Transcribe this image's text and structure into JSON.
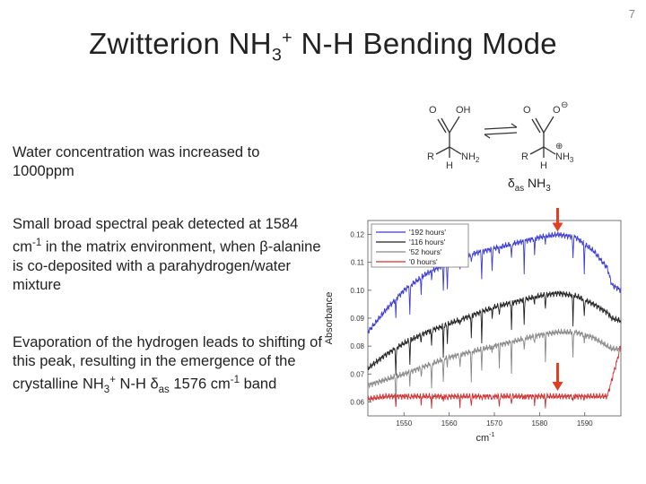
{
  "slide_number": "7",
  "title": {
    "prefix": "Zwitterion NH",
    "sub": "3",
    "sup": "+",
    "suffix": " N-H Bending Mode"
  },
  "paragraphs": {
    "p1": "Water concentration was increased to 1000ppm",
    "p2": {
      "a": "Small broad spectral peak detected at 1584 cm",
      "sup": "-1",
      "b": " in the matrix environment, when β-alanine is co-deposited with a parahydrogen/water mixture"
    },
    "p3": {
      "a": "Evaporation of the hydrogen leads to shifting of this peak, resulting in the emergence of the crystalline NH",
      "sub": "3",
      "sup": "+",
      "b": " N-H ",
      "delta": "δ",
      "delta_sub": "as",
      "c": " 1576 cm",
      "sup2": "-1",
      "d": " band"
    }
  },
  "molecules": {
    "left": {
      "top_right": "OH",
      "top_left": "O",
      "r": "R",
      "nh2": "NH",
      "nh2_sub": "2",
      "h": "H"
    },
    "right": {
      "top_right": "O",
      "charge_minus": "⊖",
      "top_left": "O",
      "r": "R",
      "nh3": "NH",
      "nh3_sub": "3",
      "charge_plus": "⊕",
      "h": "H"
    }
  },
  "delta_label": {
    "delta": "δ",
    "sub": "as",
    "text": " NH",
    "sub2": "3"
  },
  "chart_data": {
    "type": "line",
    "title": "",
    "xlabel": "cm",
    "xlabel_sup": "-1",
    "ylabel": "Absorbance",
    "xlim": [
      1542,
      1598
    ],
    "ylim": [
      0.055,
      0.125
    ],
    "x_ticks": [
      1550,
      1560,
      1570,
      1580,
      1590
    ],
    "y_ticks": [
      0.06,
      0.07,
      0.08,
      0.09,
      0.1,
      0.11,
      0.12
    ],
    "y_tick_labels": [
      "0.06",
      "0.07",
      "0.08",
      "0.09",
      "0.10",
      "0.11",
      "0.12"
    ],
    "legend_position": "top-left",
    "series": [
      {
        "name": "'192 hours'",
        "color": "#3b3bd6",
        "x": [
          1542,
          1546,
          1550,
          1555,
          1560,
          1565,
          1570,
          1575,
          1580,
          1584,
          1588,
          1592,
          1595,
          1596,
          1598
        ],
        "y": [
          0.085,
          0.093,
          0.1,
          0.106,
          0.11,
          0.113,
          0.115,
          0.117,
          0.119,
          0.12,
          0.119,
          0.114,
          0.108,
          0.102,
          0.1
        ]
      },
      {
        "name": "'116 hours'",
        "color": "#222222",
        "x": [
          1542,
          1546,
          1550,
          1555,
          1560,
          1565,
          1570,
          1575,
          1580,
          1584,
          1588,
          1592,
          1595,
          1596,
          1598
        ],
        "y": [
          0.072,
          0.077,
          0.081,
          0.085,
          0.088,
          0.091,
          0.094,
          0.096,
          0.098,
          0.099,
          0.098,
          0.095,
          0.092,
          0.09,
          0.089
        ]
      },
      {
        "name": "'52 hours'",
        "color": "#888888",
        "x": [
          1542,
          1546,
          1550,
          1555,
          1560,
          1565,
          1570,
          1575,
          1580,
          1584,
          1588,
          1592,
          1595,
          1596,
          1598
        ],
        "y": [
          0.066,
          0.068,
          0.07,
          0.073,
          0.076,
          0.078,
          0.08,
          0.082,
          0.084,
          0.085,
          0.085,
          0.083,
          0.08,
          0.079,
          0.079
        ]
      },
      {
        "name": "'0 hours'",
        "color": "#d03030",
        "x": [
          1542,
          1546,
          1550,
          1555,
          1560,
          1565,
          1570,
          1575,
          1580,
          1584,
          1588,
          1592,
          1595,
          1596,
          1598
        ],
        "y": [
          0.061,
          0.062,
          0.062,
          0.062,
          0.062,
          0.062,
          0.062,
          0.062,
          0.062,
          0.062,
          0.062,
          0.062,
          0.062,
          0.068,
          0.08
        ]
      }
    ],
    "annotations": [
      {
        "type": "arrow",
        "color": "#e04020",
        "x": 1584,
        "y_from": 0.132,
        "y_to": 0.121
      },
      {
        "type": "arrow",
        "color": "#e04020",
        "x": 1584,
        "y_from": 0.074,
        "y_to": 0.064
      }
    ]
  }
}
